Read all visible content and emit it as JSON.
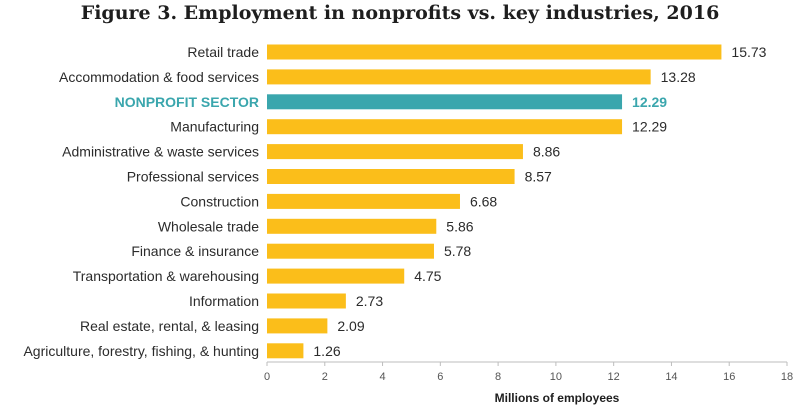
{
  "chart_data": {
    "type": "bar",
    "orientation": "horizontal",
    "title": "Figure 3. Employment in nonprofits vs. key industries, 2016",
    "xlabel": "Millions of employees",
    "ylabel": "",
    "xlim": [
      0,
      18
    ],
    "ticks": [
      0,
      2,
      4,
      6,
      8,
      10,
      12,
      14,
      16,
      18
    ],
    "tick_labels": [
      "0",
      "2",
      "4",
      "6",
      "8",
      "10",
      "12",
      "14",
      "16",
      "18"
    ],
    "categories": [
      "Retail trade",
      "Accommodation & food services",
      "NONPROFIT SECTOR",
      "Manufacturing",
      "Administrative & waste services",
      "Professional services",
      "Construction",
      "Wholesale trade",
      "Finance & insurance",
      "Transportation & warehousing",
      "Information",
      "Real estate, rental, & leasing",
      "Agriculture, forestry, fishing, & hunting"
    ],
    "values": [
      15.73,
      13.28,
      12.29,
      12.29,
      8.86,
      8.57,
      6.68,
      5.86,
      5.78,
      4.75,
      2.73,
      2.09,
      1.26
    ],
    "value_labels": [
      "15.73",
      "13.28",
      "12.29",
      "12.29",
      "8.86",
      "8.57",
      "6.68",
      "5.86",
      "5.78",
      "4.75",
      "2.73",
      "2.09",
      "1.26"
    ],
    "highlight": "NONPROFIT SECTOR",
    "colors": {
      "bar": "#fbbe1a",
      "highlight": "#3aa6ad",
      "axis": "#bdbdbd"
    }
  }
}
